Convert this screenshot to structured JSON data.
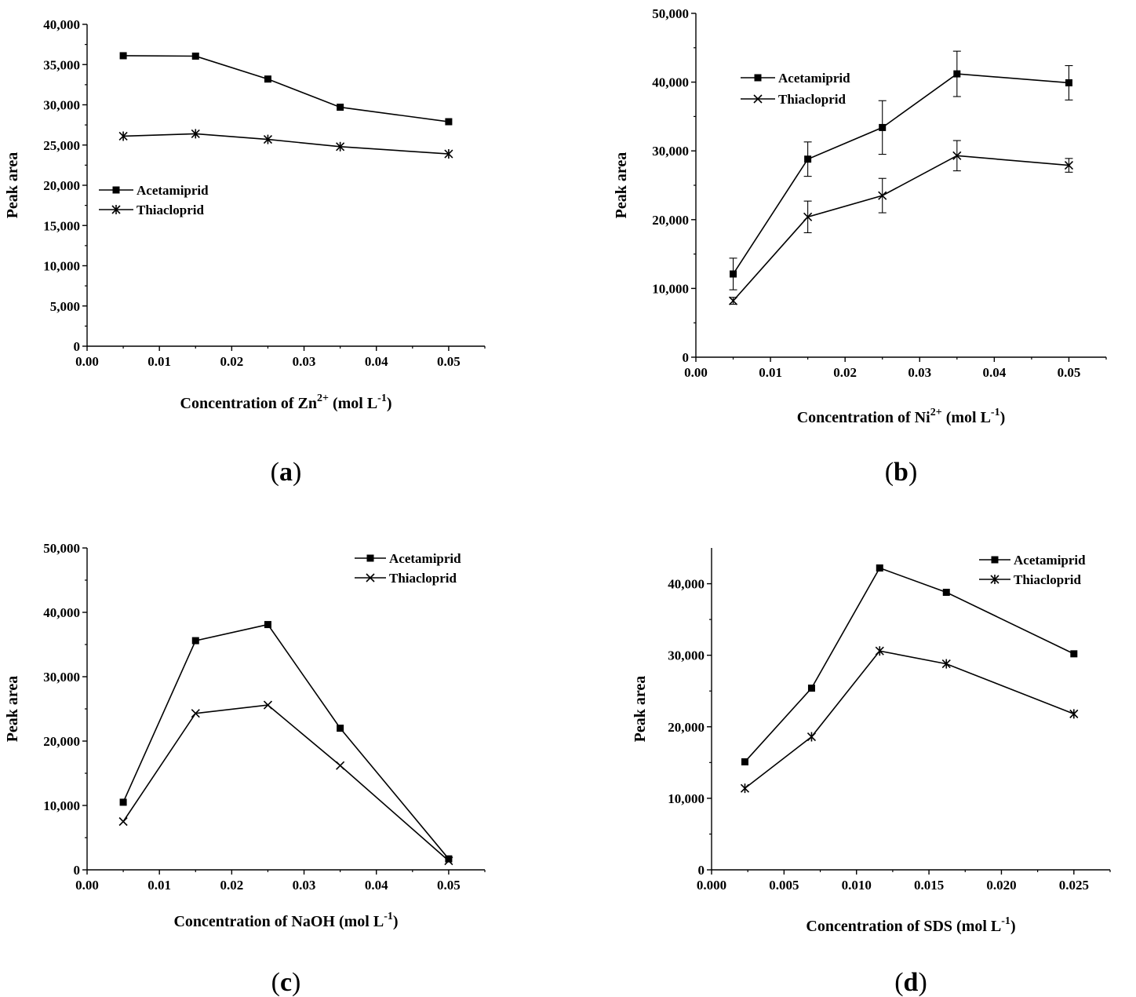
{
  "chart_data": [
    {
      "type": "line",
      "panel_label": "a",
      "ylabel": "Peak area",
      "xlabel": {
        "base": "Concentration of Zn",
        "sup": "2+",
        "unit": " (mol L",
        "unit_sup": "-1",
        "close": ")"
      },
      "xlim": [
        0,
        0.055
      ],
      "ylim": [
        0,
        40000
      ],
      "x_ticks": [
        0.0,
        0.01,
        0.02,
        0.03,
        0.04,
        0.05
      ],
      "x_tick_labels": [
        "0.00",
        "0.01",
        "0.02",
        "0.03",
        "0.04",
        "0.05"
      ],
      "y_ticks": [
        0,
        5000,
        10000,
        15000,
        20000,
        25000,
        30000,
        35000,
        40000
      ],
      "y_tick_labels": [
        "0",
        "5,000",
        "10,000",
        "15,000",
        "20,000",
        "25,000",
        "30,000",
        "35,000",
        "40,000"
      ],
      "legend_position": "middle-left",
      "x": [
        0.005,
        0.015,
        0.025,
        0.035,
        0.05
      ],
      "series": [
        {
          "name": "Acetamiprid",
          "marker": "square",
          "values": [
            36100,
            36050,
            33200,
            29700,
            27900
          ]
        },
        {
          "name": "Thiacloprid",
          "marker": "star",
          "values": [
            26100,
            26400,
            25700,
            24800,
            23900
          ]
        }
      ]
    },
    {
      "type": "line",
      "panel_label": "b",
      "ylabel": "Peak area",
      "xlabel": {
        "base": "Concentration of Ni",
        "sup": "2+",
        "unit": " (mol L",
        "unit_sup": "-1",
        "close": ")"
      },
      "xlim": [
        0,
        0.055
      ],
      "ylim": [
        0,
        50000
      ],
      "x_ticks": [
        0.0,
        0.01,
        0.02,
        0.03,
        0.04,
        0.05
      ],
      "x_tick_labels": [
        "0.00",
        "0.01",
        "0.02",
        "0.03",
        "0.04",
        "0.05"
      ],
      "y_ticks": [
        0,
        10000,
        20000,
        30000,
        40000,
        50000
      ],
      "y_tick_labels": [
        "0",
        "10,000",
        "20,000",
        "30,000",
        "40,000",
        "50,000"
      ],
      "legend_position": "top-left",
      "x": [
        0.005,
        0.015,
        0.025,
        0.035,
        0.05
      ],
      "series": [
        {
          "name": "Acetamiprid",
          "marker": "square",
          "values": [
            12100,
            28800,
            33400,
            41200,
            39900
          ],
          "errors": [
            2300,
            2500,
            3900,
            3300,
            2500
          ]
        },
        {
          "name": "Thiacloprid",
          "marker": "x",
          "values": [
            8200,
            20400,
            23500,
            29300,
            27900
          ],
          "errors": [
            500,
            2300,
            2500,
            2200,
            1000
          ]
        }
      ]
    },
    {
      "type": "line",
      "panel_label": "c",
      "ylabel": "Peak area",
      "xlabel": {
        "base": "Concentration of NaOH",
        "sup": "",
        "unit": " (mol L",
        "unit_sup": "-1",
        "close": ")"
      },
      "xlim": [
        0,
        0.055
      ],
      "ylim": [
        0,
        50000
      ],
      "x_ticks": [
        0.0,
        0.01,
        0.02,
        0.03,
        0.04,
        0.05
      ],
      "x_tick_labels": [
        "0.00",
        "0.01",
        "0.02",
        "0.03",
        "0.04",
        "0.05"
      ],
      "y_ticks": [
        0,
        10000,
        20000,
        30000,
        40000,
        50000
      ],
      "y_tick_labels": [
        "0",
        "10,000",
        "20,000",
        "30,000",
        "40,000",
        "50,000"
      ],
      "legend_position": "top-right",
      "x": [
        0.005,
        0.015,
        0.025,
        0.035,
        0.05
      ],
      "series": [
        {
          "name": "Acetamiprid",
          "marker": "square",
          "values": [
            10500,
            35600,
            38100,
            22000,
            1700
          ]
        },
        {
          "name": "Thiacloprid",
          "marker": "x",
          "values": [
            7500,
            24300,
            25600,
            16200,
            1400
          ]
        }
      ]
    },
    {
      "type": "line",
      "panel_label": "d",
      "ylabel": "Peak area",
      "xlabel": {
        "base": "Concentration of SDS",
        "sup": "",
        "unit": " (mol L",
        "unit_sup": "-1",
        "close": ")"
      },
      "xlim": [
        0,
        0.0275
      ],
      "ylim": [
        0,
        45000
      ],
      "x_ticks": [
        0.0,
        0.005,
        0.01,
        0.015,
        0.02,
        0.025
      ],
      "x_tick_labels": [
        "0.000",
        "0.005",
        "0.010",
        "0.015",
        "0.020",
        "0.025"
      ],
      "y_ticks": [
        0,
        10000,
        20000,
        30000,
        40000
      ],
      "y_tick_labels": [
        "0",
        "10,000",
        "20,000",
        "30,000",
        "40,000"
      ],
      "legend_position": "top-right",
      "x": [
        0.0023,
        0.0069,
        0.0116,
        0.0162,
        0.025
      ],
      "series": [
        {
          "name": "Acetamiprid",
          "marker": "square",
          "values": [
            15100,
            25400,
            42200,
            38800,
            30200
          ]
        },
        {
          "name": "Thiacloprid",
          "marker": "star",
          "values": [
            11400,
            18600,
            30600,
            28800,
            21800
          ]
        }
      ]
    }
  ]
}
